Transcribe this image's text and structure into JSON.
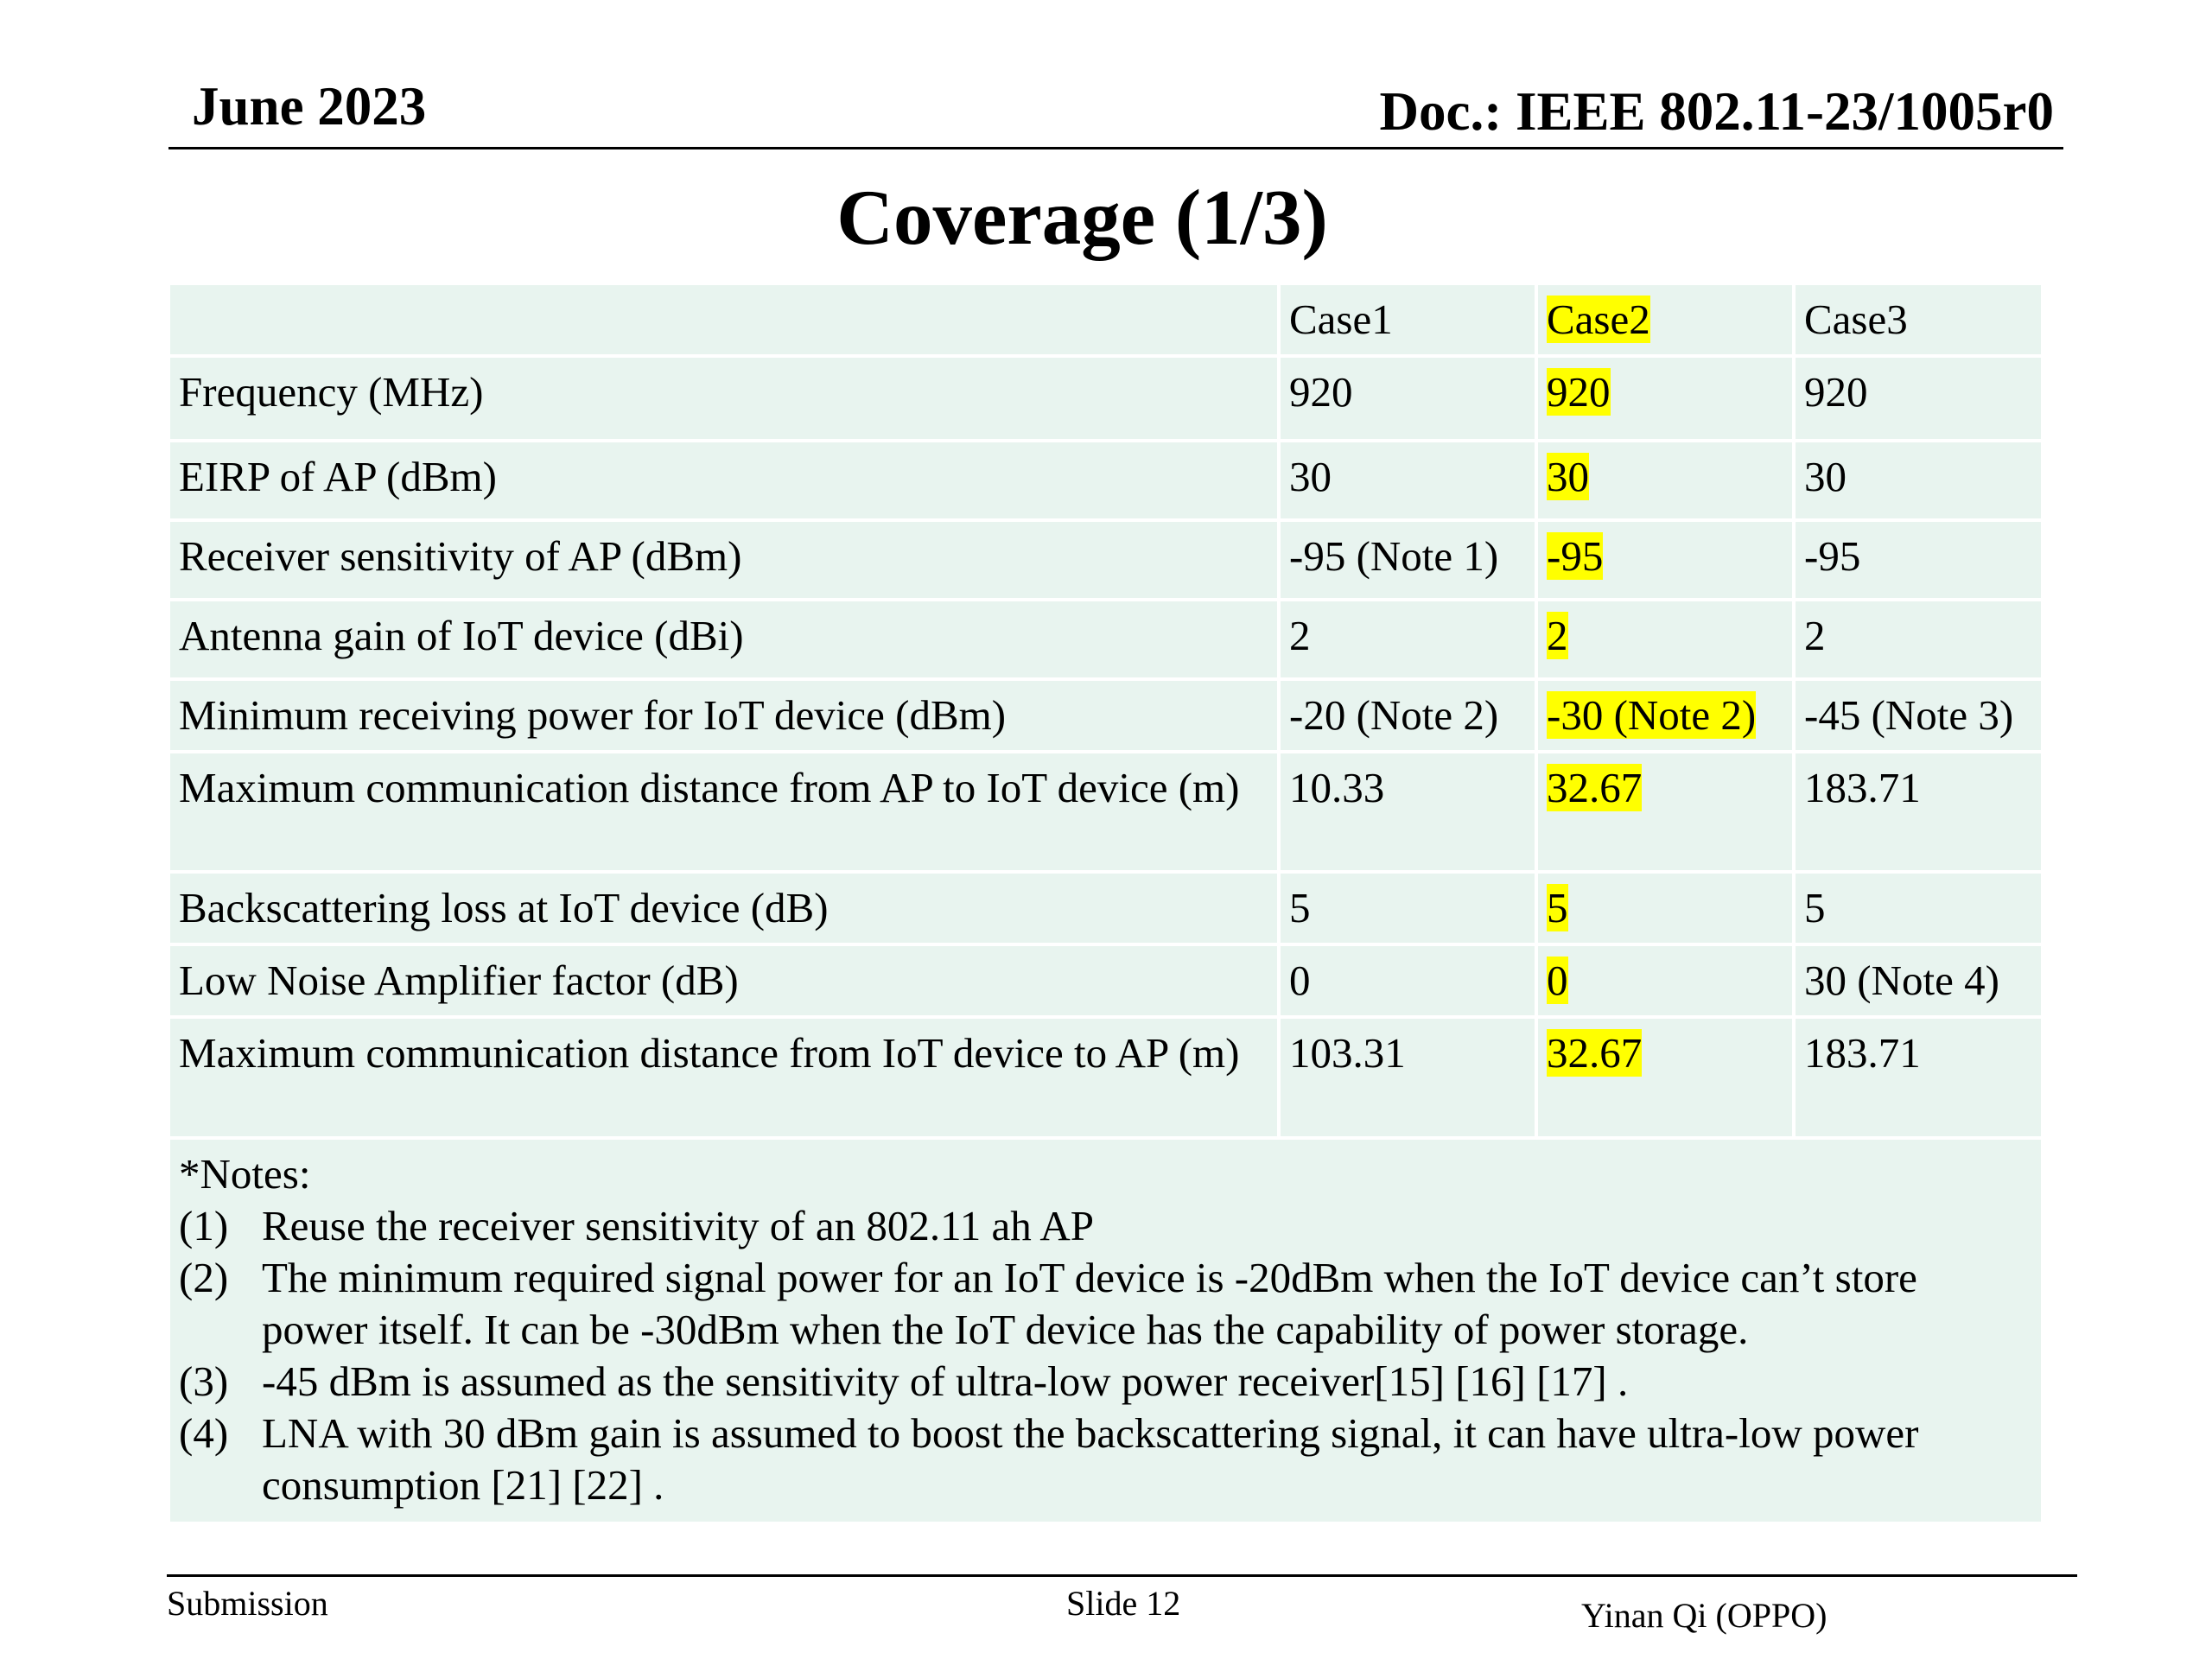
{
  "header": {
    "date": "June 2023",
    "doc": "Doc.: IEEE 802.11-23/1005r0"
  },
  "title": "Coverage (1/3)",
  "table": {
    "columns": [
      "",
      "Case1",
      "Case2",
      "Case3"
    ],
    "highlight_color": "#ffff00",
    "cell_bg": "#e8f4ef",
    "rows": [
      [
        "Frequency (MHz)",
        "920",
        "920",
        "920"
      ],
      [
        "EIRP of AP (dBm)",
        "30",
        "30",
        "30"
      ],
      [
        "Receiver sensitivity of AP (dBm)",
        "-95 (Note 1)",
        "-95",
        "-95"
      ],
      [
        "Antenna gain of IoT device (dBi)",
        "2",
        "2",
        "2"
      ],
      [
        "Minimum receiving power for IoT device (dBm)",
        "-20 (Note 2)",
        "-30 (Note 2)",
        "-45 (Note 3)"
      ],
      [
        "Maximum communication distance from AP to IoT device (m)",
        "10.33",
        "32.67",
        "183.71"
      ],
      [
        "Backscattering loss at IoT device (dB)",
        "5",
        "5",
        "5"
      ],
      [
        "Low Noise Amplifier factor (dB)",
        "0",
        "0",
        "30 (Note 4)"
      ],
      [
        "Maximum communication distance from IoT device to AP (m)",
        "103.31",
        "32.67",
        "183.71"
      ]
    ]
  },
  "notes": {
    "heading": "*Notes:",
    "items": [
      {
        "num": "(1)",
        "text": "Reuse the receiver sensitivity of an 802.11 ah AP"
      },
      {
        "num": "(2)",
        "text": "The minimum required signal power for an IoT device is -20dBm when the IoT device can’t store power itself. It can be -30dBm when the IoT device has the capability of power storage."
      },
      {
        "num": "(3)",
        "text": "-45 dBm is assumed as the sensitivity of ultra-low power receiver[15] [16] [17] ."
      },
      {
        "num": "(4)",
        "text": "LNA with 30 dBm gain is assumed to boost the backscattering signal, it can have ultra-low power consumption [21] [22] ."
      }
    ]
  },
  "footer": {
    "left": "Submission",
    "center": "Slide 12",
    "right": "Yinan Qi (OPPO)"
  }
}
